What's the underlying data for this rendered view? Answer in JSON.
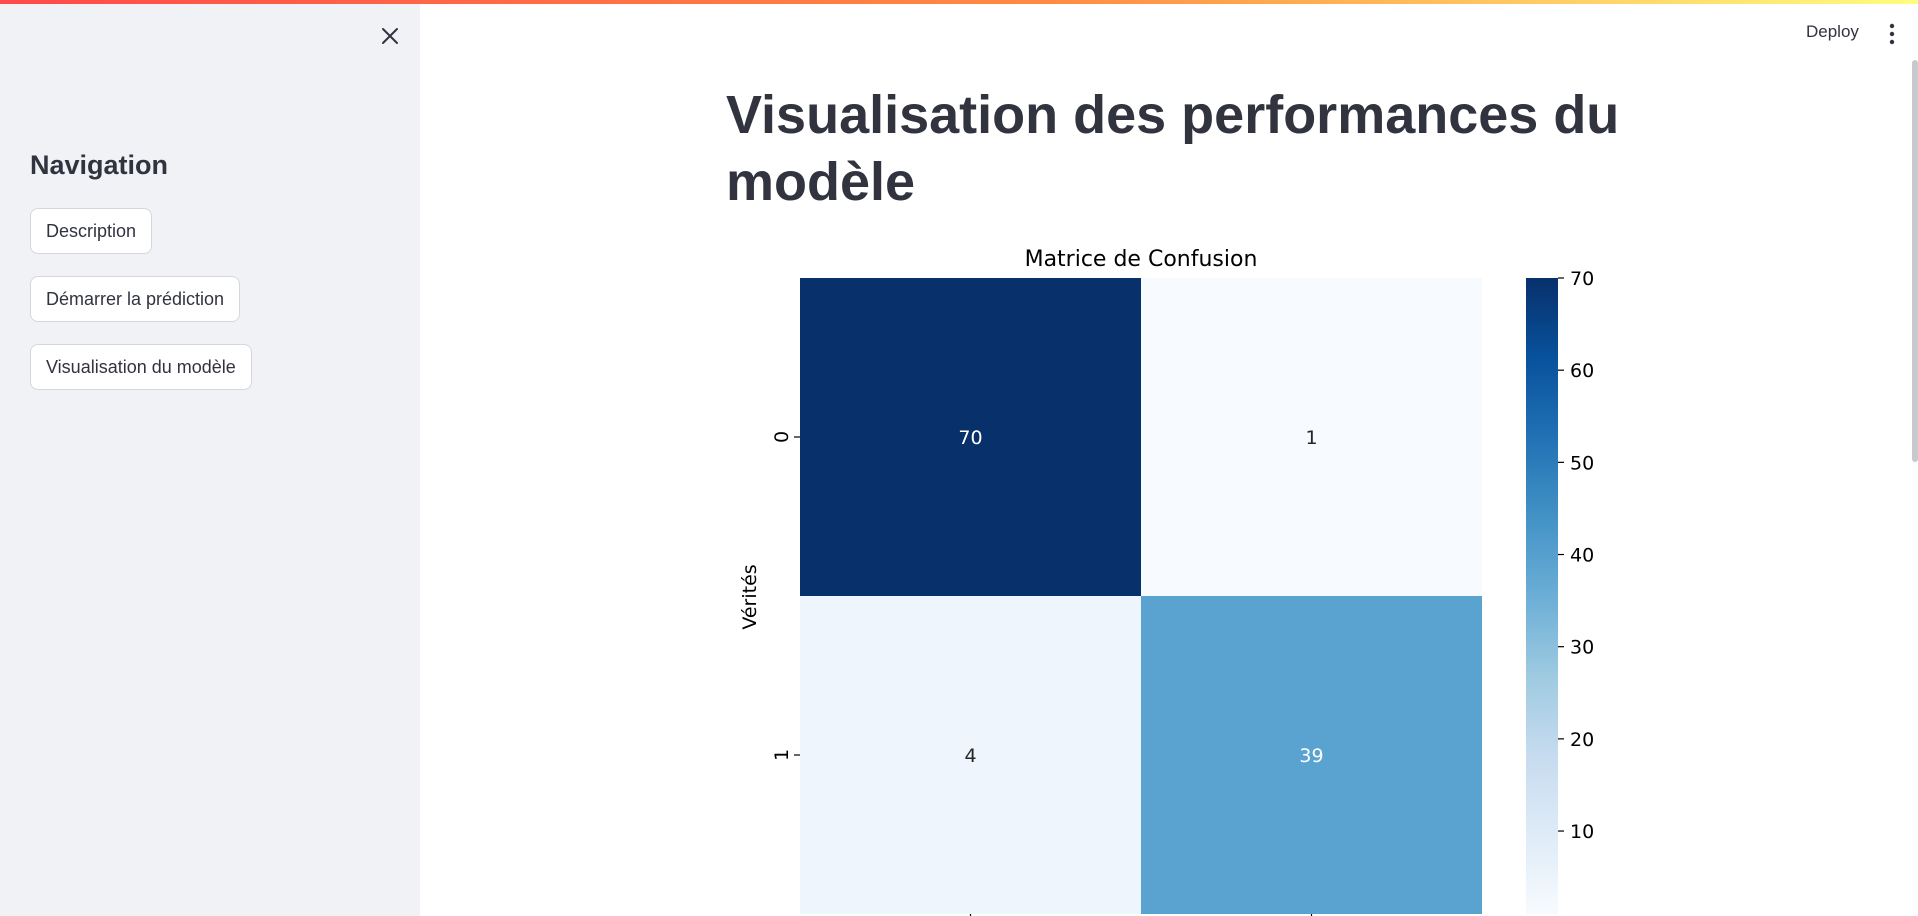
{
  "sidebar": {
    "title": "Navigation",
    "buttons": [
      {
        "label": "Description"
      },
      {
        "label": "Démarrer la prédiction"
      },
      {
        "label": "Visualisation du modèle"
      }
    ]
  },
  "header": {
    "deploy_label": "Deploy"
  },
  "main": {
    "title": "Visualisation des performances du modèle"
  },
  "icons": {
    "close": "close-icon",
    "menu": "kebab-menu-icon"
  },
  "colors": {
    "accent_gradient": [
      "#ff4b4b",
      "#fffd80"
    ],
    "sidebar_bg": "#f0f2f6",
    "text": "#31333f"
  },
  "chart_data": {
    "type": "heatmap",
    "title": "Matrice de Confusion",
    "ylabel": "Vérités",
    "xlabel": "",
    "row_labels": [
      "0",
      "1"
    ],
    "col_labels": [
      "",
      ""
    ],
    "values": [
      [
        70,
        1
      ],
      [
        4,
        39
      ]
    ],
    "colormap": "Blues",
    "colorbar": {
      "min": 1,
      "max": 70,
      "ticks": [
        "10",
        "20",
        "30",
        "40",
        "50",
        "60",
        "70"
      ]
    }
  }
}
